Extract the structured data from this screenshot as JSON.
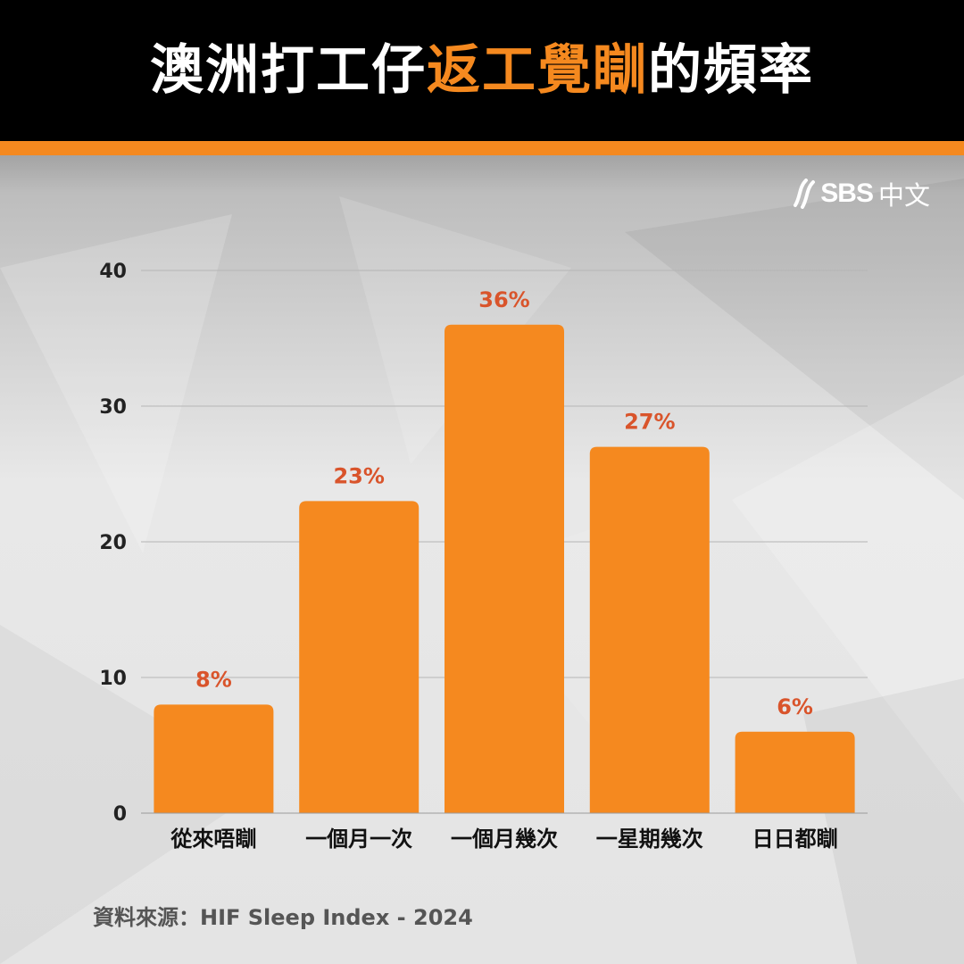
{
  "header": {
    "title_part1": "澳洲打工仔",
    "title_highlight": "返工覺瞓",
    "title_part2": "的頻率"
  },
  "logo": {
    "text": "SBS",
    "sub": "中文",
    "icon": "sbs-wave-logo"
  },
  "colors": {
    "accent": "#f5891f",
    "bar": "#f5891f",
    "label": "#d9542b",
    "header_bg": "#000000"
  },
  "chart_data": {
    "type": "bar",
    "title": "澳洲打工仔返工覺瞓的頻率",
    "categories": [
      "從來唔瞓",
      "一個月一次",
      "一個月幾次",
      "一星期幾次",
      "日日都瞓"
    ],
    "values": [
      8,
      23,
      36,
      27,
      6
    ],
    "value_labels": [
      "8%",
      "23%",
      "36%",
      "27%",
      "6%"
    ],
    "ylim": [
      0,
      40
    ],
    "yticks": [
      0,
      10,
      20,
      30,
      40
    ],
    "xlabel": "",
    "ylabel": "",
    "grid": true,
    "legend": "none"
  },
  "source": "資料來源：HIF Sleep Index - 2024"
}
